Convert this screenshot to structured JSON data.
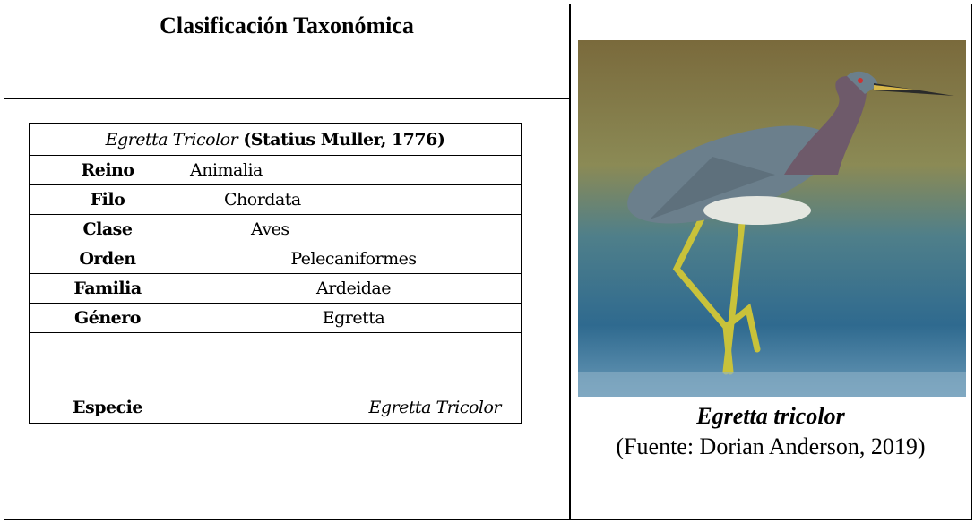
{
  "header": {
    "title": "Clasificación Taxonómica"
  },
  "table": {
    "species": "Egretta Tricolor",
    "author": "(Statius Muller, 1776)",
    "rows": [
      [
        "Reino",
        "Animalia"
      ],
      [
        "Filo",
        "Chordata"
      ],
      [
        "Clase",
        "Aves"
      ],
      [
        "Orden",
        "Pelecaniformes"
      ],
      [
        "Familia",
        "Ardeidae"
      ],
      [
        "Género",
        "Egretta"
      ],
      [
        "Especie",
        "Egretta Tricolor"
      ]
    ]
  },
  "figure": {
    "caption": "Egretta tricolor",
    "source": "(Fuente: Dorian Anderson, 2019)"
  }
}
